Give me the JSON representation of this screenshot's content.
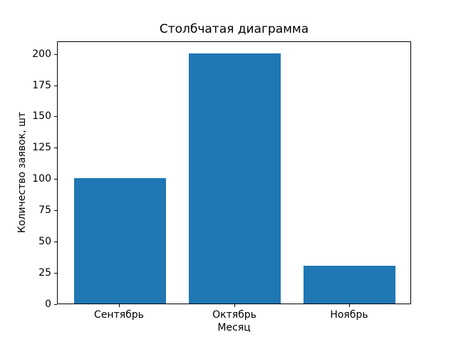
{
  "chart_data": {
    "type": "bar",
    "title": "Столбчатая диаграмма",
    "xlabel": "Месяц",
    "ylabel": "Количество заявок, шт",
    "categories": [
      "Сентябрь",
      "Октябрь",
      "Ноябрь"
    ],
    "values": [
      100,
      200,
      30
    ],
    "yticks": [
      0,
      25,
      50,
      75,
      100,
      125,
      150,
      175,
      200
    ],
    "ylim": [
      0,
      210
    ],
    "bar_color": "#1f77b4",
    "grid": false,
    "legend_position": "none"
  }
}
